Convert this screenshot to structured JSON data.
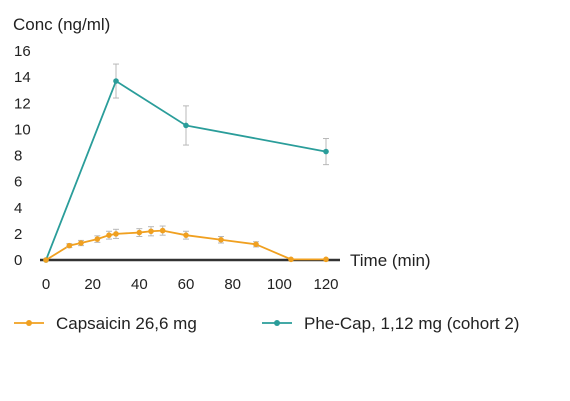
{
  "chart_data": {
    "type": "line",
    "ylabel": "Conc (ng/ml)",
    "xlabel": "Time (min)",
    "xlim": [
      0,
      120
    ],
    "ylim": [
      0,
      16
    ],
    "x_ticks": [
      0,
      20,
      40,
      60,
      80,
      100,
      120
    ],
    "y_ticks": [
      0,
      2,
      4,
      6,
      8,
      10,
      12,
      14,
      16
    ],
    "grid": false,
    "legend_position": "bottom",
    "series": [
      {
        "name": "Capsaicin 26,6 mg",
        "color": "#F0A020",
        "x": [
          0,
          10,
          15,
          22,
          27,
          30,
          40,
          45,
          50,
          60,
          75,
          90,
          105,
          120
        ],
        "y": [
          0,
          1.1,
          1.3,
          1.6,
          1.9,
          2.0,
          2.1,
          2.2,
          2.25,
          1.9,
          1.55,
          1.2,
          0.05,
          0.05
        ],
        "error": [
          0,
          0.15,
          0.2,
          0.25,
          0.3,
          0.35,
          0.3,
          0.35,
          0.35,
          0.3,
          0.25,
          0.2,
          0,
          0
        ]
      },
      {
        "name": "Phe-Cap, 1,12 mg (cohort 2)",
        "color": "#2A9D9A",
        "x": [
          0,
          30,
          60,
          120
        ],
        "y": [
          0,
          13.7,
          10.3,
          8.3
        ],
        "error": [
          0,
          1.3,
          1.5,
          1.0
        ]
      }
    ]
  }
}
